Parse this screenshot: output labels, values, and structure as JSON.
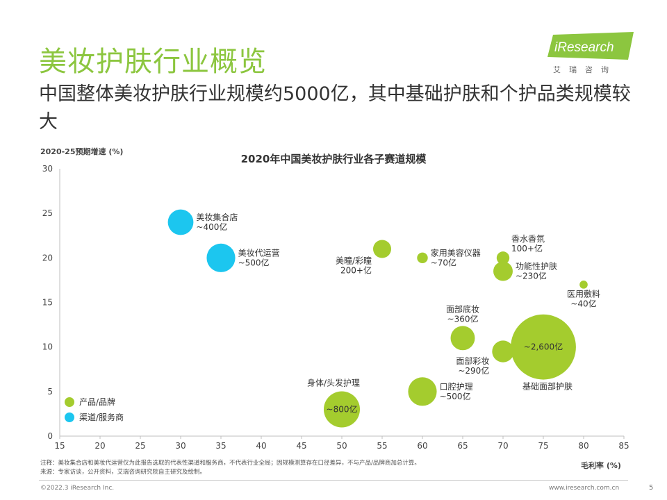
{
  "slide": {
    "title": "美妆护肤行业概览",
    "subtitle": "中国整体美妆护肤行业规模约5000亿，其中基础护肤和个护品类规模较大",
    "logo_text": "iResearch",
    "logo_sub": "艾瑞咨询",
    "notes": [
      "注释：美妆集合店和美妆代运营仅为此报告选取的代表性渠道和服务商，不代表行业全局；因规模测算存在口径差异，不与产品/品牌商加总计算。",
      "来源：专家访谈，公开资料，艾瑞咨询研究院自主研究及绘制。"
    ],
    "copyright": "©2022.3 iResearch Inc.",
    "website": "www.iresearch.com.cn",
    "page_number": "5"
  },
  "colors": {
    "brand_green": "#8cc63f",
    "product": "#a4cc2e",
    "channel": "#1cc6ef"
  },
  "chart_data": {
    "type": "bubble",
    "title": "2020年中国美妆护肤行业各子赛道规模",
    "xlabel": "毛利率 (%)",
    "ylabel": "2020-25预期增速 (%)",
    "xlim": [
      15,
      85
    ],
    "ylim": [
      0,
      30
    ],
    "x_ticks": [
      15,
      20,
      25,
      30,
      35,
      40,
      45,
      50,
      55,
      60,
      65,
      70,
      75,
      80,
      85
    ],
    "y_ticks": [
      0,
      5,
      10,
      15,
      20,
      25,
      30
    ],
    "grid": false,
    "legend_position": "bottom-left",
    "legend": [
      {
        "label": "产品/品牌",
        "series": "product"
      },
      {
        "label": "渠道/服务商",
        "series": "channel"
      }
    ],
    "points": [
      {
        "name": "美妆集合店",
        "size_label": "~400亿",
        "size": 400,
        "x": 30,
        "y": 24,
        "series": "channel",
        "label_side": "right"
      },
      {
        "name": "美妆代运营",
        "size_label": "~500亿",
        "size": 500,
        "x": 35,
        "y": 20,
        "series": "channel",
        "label_side": "right"
      },
      {
        "name": "美瞳/彩瞳",
        "size_label": "200+亿",
        "size": 200,
        "x": 55,
        "y": 21,
        "series": "product",
        "label_side": "below-left"
      },
      {
        "name": "家用美容仪器",
        "size_label": "~70亿",
        "size": 70,
        "x": 60,
        "y": 20,
        "series": "product",
        "label_side": "right"
      },
      {
        "name": "香水香氛",
        "size_label": "100+亿",
        "size": 100,
        "x": 70,
        "y": 20,
        "series": "product",
        "label_side": "above-right"
      },
      {
        "name": "功能性护肤",
        "size_label": "~230亿",
        "size": 230,
        "x": 70,
        "y": 18.5,
        "series": "product",
        "label_side": "right"
      },
      {
        "name": "医用敷料",
        "size_label": "~40亿",
        "size": 40,
        "x": 80,
        "y": 17,
        "series": "product",
        "label_side": "below"
      },
      {
        "name": "面部底妆",
        "size_label": "~360亿",
        "size": 360,
        "x": 65,
        "y": 11,
        "series": "product",
        "label_side": "above"
      },
      {
        "name": "面部彩妆",
        "size_label": "~290亿",
        "size": 290,
        "x": 70,
        "y": 9.5,
        "series": "product",
        "label_side": "left"
      },
      {
        "name": "基础面部护肤",
        "size_label": "~2,600亿",
        "size": 2600,
        "x": 75,
        "y": 10,
        "series": "product",
        "label_side": "below-inside"
      },
      {
        "name": "口腔护理",
        "size_label": "~500亿",
        "size": 500,
        "x": 60,
        "y": 5,
        "series": "product",
        "label_side": "right"
      },
      {
        "name": "身体/头发护理",
        "size_label": "~800亿",
        "size": 800,
        "x": 50,
        "y": 3,
        "series": "product",
        "label_side": "above-inside"
      }
    ]
  }
}
